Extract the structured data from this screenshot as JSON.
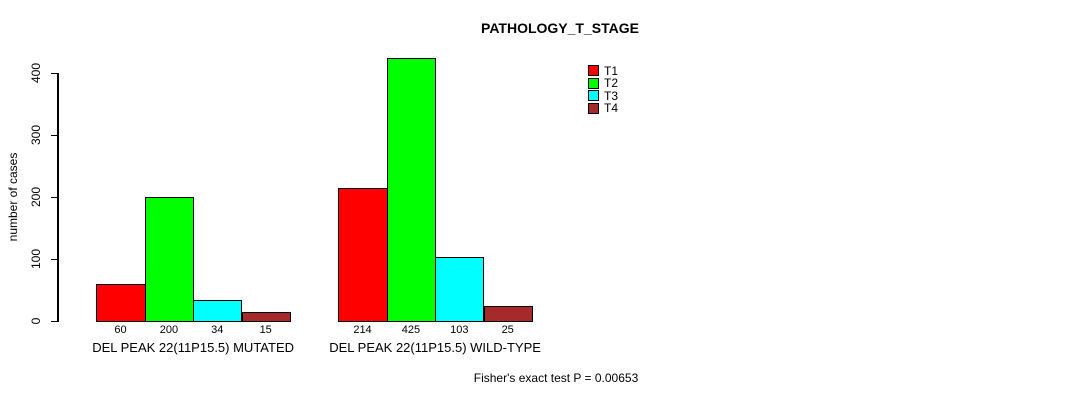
{
  "title": "PATHOLOGY_T_STAGE",
  "chart_data": {
    "type": "bar",
    "title": "PATHOLOGY_T_STAGE",
    "xlabel": "",
    "ylabel": "number of cases",
    "ylim": [
      0,
      400
    ],
    "yticks": [
      0,
      100,
      200,
      300,
      400
    ],
    "grid": false,
    "legend_position": "top-right",
    "groups": [
      "DEL PEAK 22(11P15.5) MUTATED",
      "DEL PEAK 22(11P15.5) WILD-TYPE"
    ],
    "series": [
      {
        "name": "T1",
        "color": "#ff0000",
        "values": [
          60,
          214
        ]
      },
      {
        "name": "T2",
        "color": "#00ff00",
        "values": [
          200,
          425
        ]
      },
      {
        "name": "T3",
        "color": "#00ffff",
        "values": [
          34,
          103
        ]
      },
      {
        "name": "T4",
        "color": "#a52a2a",
        "values": [
          15,
          25
        ]
      }
    ],
    "bar_labels": [
      [
        "60",
        "200",
        "34",
        "15"
      ],
      [
        "214",
        "425",
        "103",
        "25"
      ]
    ],
    "annotation": "Fisher's exact test P = 0.00653",
    "axis_color": "#000000",
    "bar_border_color": "#000000"
  }
}
